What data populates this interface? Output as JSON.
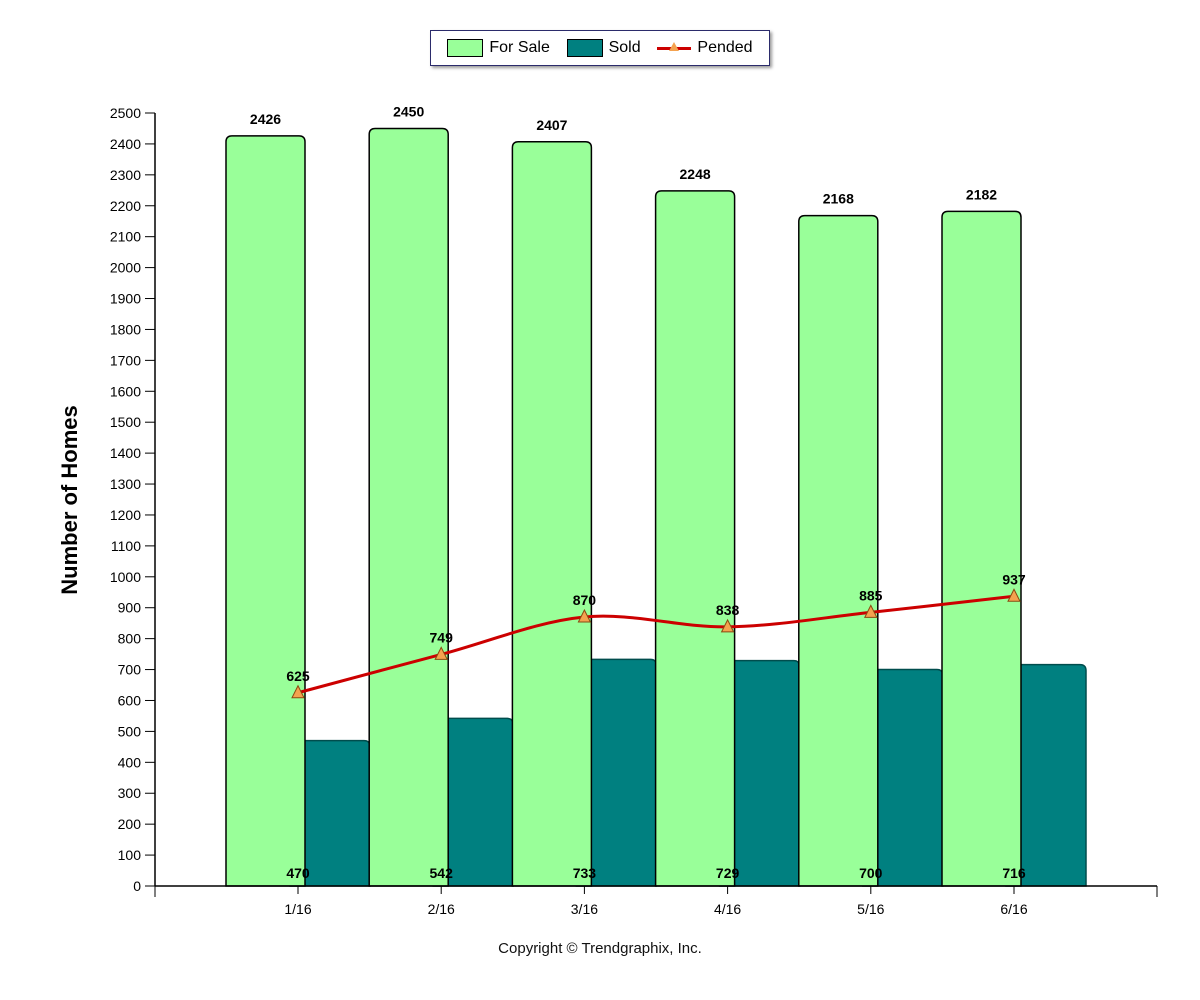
{
  "legend": {
    "for_sale": "For Sale",
    "sold": "Sold",
    "pended": "Pended"
  },
  "footer": {
    "copyright": "Copyright © Trendgraphix, Inc."
  },
  "colors": {
    "for_sale": "#99ff99",
    "sold": "#008080",
    "pended_line": "#cc0000",
    "pended_marker": "#f4a24f"
  },
  "chart_data": {
    "type": "bar",
    "categories": [
      "1/16",
      "2/16",
      "3/16",
      "4/16",
      "5/16",
      "6/16"
    ],
    "series": [
      {
        "name": "For Sale",
        "type": "bar",
        "values": [
          2426,
          2450,
          2407,
          2248,
          2168,
          2182
        ]
      },
      {
        "name": "Sold",
        "type": "bar",
        "values": [
          470,
          542,
          733,
          729,
          700,
          716
        ]
      },
      {
        "name": "Pended",
        "type": "line",
        "values": [
          625,
          749,
          870,
          838,
          885,
          937
        ]
      }
    ],
    "title": "",
    "xlabel": "",
    "ylabel": "Number of Homes",
    "ylim": [
      0,
      2500
    ],
    "yticks": [
      0,
      100,
      200,
      300,
      400,
      500,
      600,
      700,
      800,
      900,
      1000,
      1100,
      1200,
      1300,
      1400,
      1500,
      1600,
      1700,
      1800,
      1900,
      2000,
      2100,
      2200,
      2300,
      2400,
      2500
    ],
    "grid": false,
    "legend_position": "top-center"
  }
}
